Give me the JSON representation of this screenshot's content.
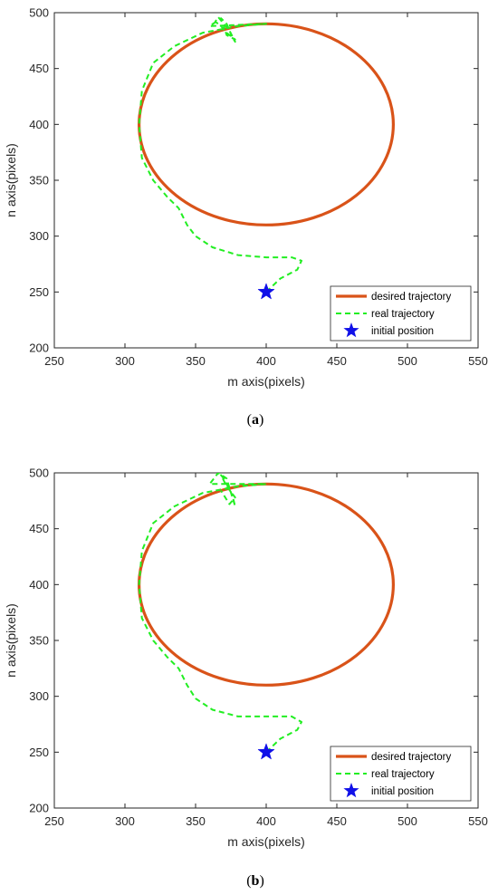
{
  "chart_data": [
    {
      "type": "line",
      "caption": "(a)",
      "caption_letter": "a",
      "xlabel": "m axis(pixels)",
      "ylabel": "n axis(pixels)",
      "xlim": [
        250,
        550
      ],
      "ylim": [
        200,
        500
      ],
      "xticks": [
        250,
        300,
        350,
        400,
        450,
        500,
        550
      ],
      "yticks": [
        200,
        250,
        300,
        350,
        400,
        450,
        500
      ],
      "grid": false,
      "legend_position": "bottom-right",
      "colors": {
        "desired": "#d95319",
        "real": "#22ee22",
        "initial": "#1010e8"
      },
      "series": [
        {
          "name": "desired trajectory",
          "style": "solid",
          "shape": "ellipse",
          "center": [
            400,
            400
          ],
          "radius_x": 90,
          "radius_y": 90
        },
        {
          "name": "real trajectory",
          "style": "dashed",
          "x": [
            400,
            410,
            422,
            425,
            418,
            400,
            380,
            362,
            350,
            344,
            338,
            330,
            320,
            312,
            310,
            312,
            320,
            335,
            355,
            380,
            400,
            360,
            368,
            372,
            376,
            378,
            374,
            366,
            364,
            368,
            372,
            378,
            372,
            370
          ],
          "y": [
            250,
            262,
            270,
            278,
            281,
            281,
            283,
            290,
            300,
            310,
            325,
            335,
            350,
            370,
            400,
            430,
            455,
            470,
            482,
            488,
            490,
            488,
            495,
            490,
            478,
            474,
            484,
            496,
            492,
            488,
            482,
            476,
            480,
            488
          ]
        },
        {
          "name": "initial position",
          "style": "marker",
          "marker": "star",
          "x": [
            400
          ],
          "y": [
            250
          ]
        }
      ]
    },
    {
      "type": "line",
      "caption": "(b)",
      "caption_letter": "b",
      "xlabel": "m axis(pixels)",
      "ylabel": "n axis(pixels)",
      "xlim": [
        250,
        550
      ],
      "ylim": [
        200,
        500
      ],
      "xticks": [
        250,
        300,
        350,
        400,
        450,
        500,
        550
      ],
      "yticks": [
        200,
        250,
        300,
        350,
        400,
        450,
        500
      ],
      "grid": false,
      "legend_position": "bottom-right",
      "colors": {
        "desired": "#d95319",
        "real": "#22ee22",
        "initial": "#1010e8"
      },
      "series": [
        {
          "name": "desired trajectory",
          "style": "solid",
          "shape": "ellipse",
          "center": [
            400,
            400
          ],
          "radius_x": 90,
          "radius_y": 90
        },
        {
          "name": "real trajectory",
          "style": "dashed",
          "x": [
            400,
            410,
            422,
            425,
            418,
            400,
            380,
            362,
            350,
            344,
            338,
            330,
            320,
            312,
            310,
            312,
            320,
            335,
            355,
            380,
            400,
            360,
            366,
            372,
            378,
            376,
            370,
            368,
            372,
            378,
            374,
            368
          ],
          "y": [
            250,
            262,
            270,
            277,
            282,
            282,
            282,
            288,
            298,
            310,
            325,
            335,
            350,
            370,
            400,
            430,
            455,
            470,
            482,
            488,
            490,
            490,
            500,
            495,
            470,
            480,
            495,
            498,
            488,
            478,
            472,
            484
          ]
        },
        {
          "name": "initial position",
          "style": "marker",
          "marker": "star",
          "x": [
            400
          ],
          "y": [
            250
          ]
        }
      ]
    }
  ]
}
